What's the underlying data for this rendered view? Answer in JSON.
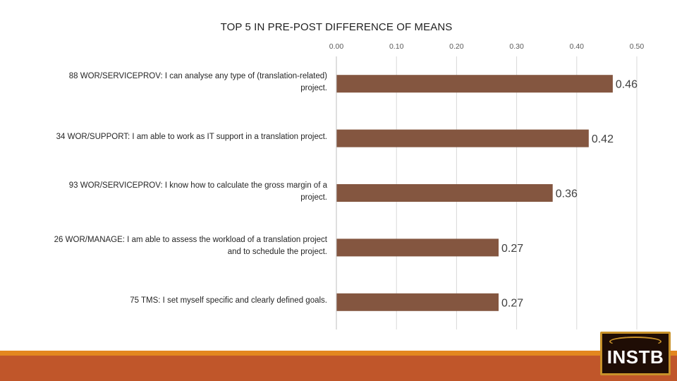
{
  "chart_data": {
    "type": "bar",
    "orientation": "horizontal",
    "title": "TOP 5 IN PRE-POST DIFFERENCE OF MEANS",
    "categories": [
      [
        "88 WOR/SERVICEPROV: I can analyse any type of (translation-related)",
        "project."
      ],
      [
        "34 WOR/SUPPORT: I am able to work as IT support in a translation project."
      ],
      [
        "93 WOR/SERVICEPROV: I know how to calculate the gross margin of a",
        "project."
      ],
      [
        "26 WOR/MANAGE: I am able to assess the workload of a translation project",
        "and to schedule the project."
      ],
      [
        "75 TMS: I set myself specific and clearly defined goals."
      ]
    ],
    "values": [
      0.46,
      0.42,
      0.36,
      0.27,
      0.27
    ],
    "data_labels": [
      "0.46",
      "0.42",
      "0.36",
      "0.27",
      "0.27"
    ],
    "xticks": [
      "0.00",
      "0.10",
      "0.20",
      "0.30",
      "0.40",
      "0.50"
    ],
    "xlim": [
      0,
      0.5
    ],
    "axis_position": "top",
    "grid": true,
    "bar_color": "#845640"
  },
  "logo": {
    "text": "INSTB"
  }
}
